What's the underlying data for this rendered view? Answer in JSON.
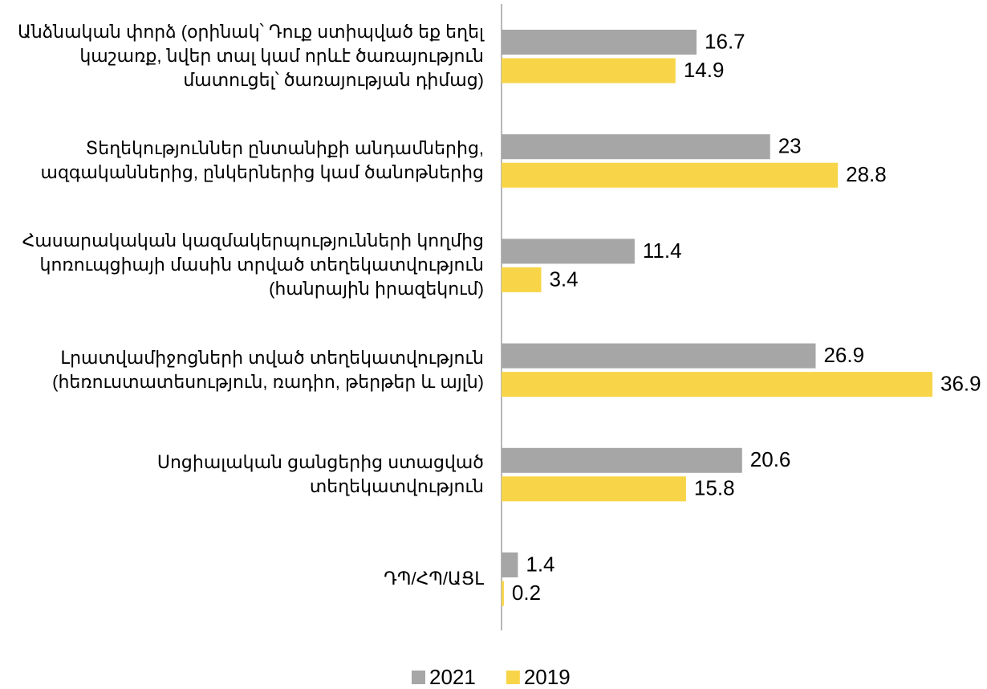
{
  "chart_data": {
    "type": "hbar",
    "categories": [
      "Անձնական փորձ (օրինակ՝ Դուք ստիպված եք եղել կաշառք, նվեր տալ կամ որևէ ծառայություն մատուցել՝ ծառայության դիմաց)",
      "Տեղեկություններ ընտանիքի անդամներից, ազգականներից, ընկերներից կամ ծանոթներից",
      "Հասարակական կազմակերպությունների կողմից կոռուպցիայի մասին տրված տեղեկատվություն (հանրային իրազեկում)",
      "Լրատվամիջոցների տված տեղեկատվություն (հեռուստատեսություն, ռադիո, թերթեր և այլն)",
      "Սոցիալական ցանցերից ստացված տեղեկատվություն",
      "ԴՊ/ՀՊ/ԱՑԼ"
    ],
    "series": [
      {
        "name": "2021",
        "color": "#a6a6a6",
        "values": [
          16.7,
          23,
          11.4,
          26.9,
          20.6,
          1.4
        ]
      },
      {
        "name": "2019",
        "color": "#f8d548",
        "values": [
          14.9,
          28.8,
          3.4,
          36.9,
          15.8,
          0.2
        ]
      }
    ],
    "legend": "bottom"
  }
}
